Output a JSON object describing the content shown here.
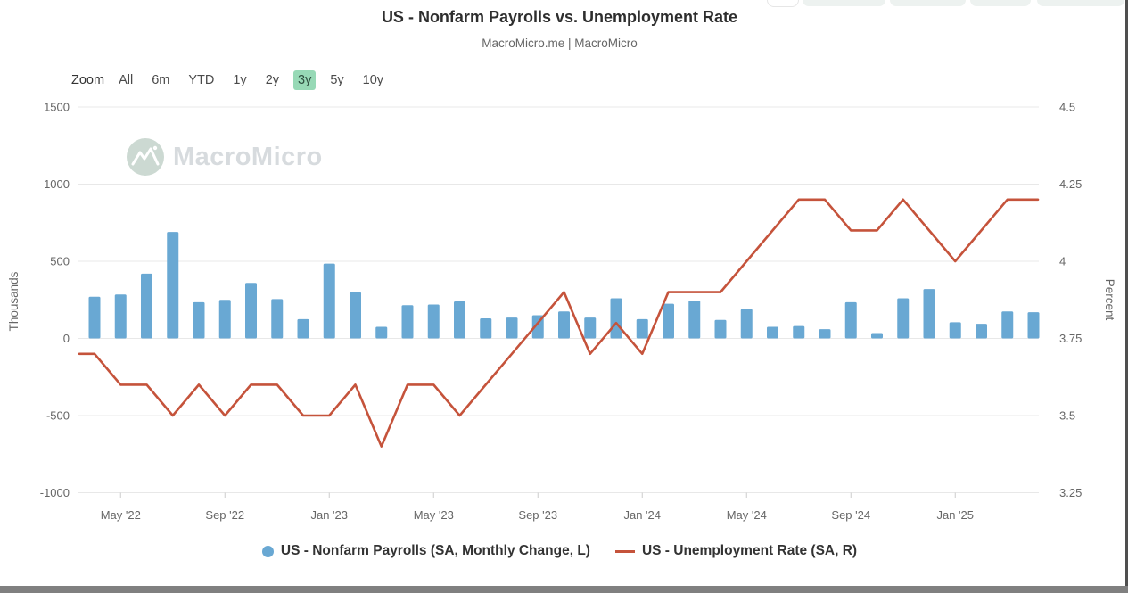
{
  "header": {
    "title": "US - Nonfarm Payrolls vs. Unemployment Rate",
    "subtitle": "MacroMicro.me | MacroMicro"
  },
  "toolbar": {
    "zoom_label": "Zoom",
    "ranges": [
      "All",
      "6m",
      "YTD",
      "1y",
      "2y",
      "3y",
      "5y",
      "10y"
    ],
    "selected": "3y"
  },
  "watermark": {
    "text": "MacroMicro",
    "logo": "macromicro-mountain-logo"
  },
  "axes": {
    "left": {
      "title": "Thousands",
      "ticks": [
        1500,
        1000,
        500,
        0,
        -500,
        -1000
      ]
    },
    "right": {
      "title": "Percent",
      "ticks": [
        4.5,
        4.25,
        4,
        3.75,
        3.5,
        3.25
      ]
    },
    "x": {
      "labels": [
        "May '22",
        "Sep '22",
        "Jan '23",
        "May '23",
        "Sep '23",
        "Jan '24",
        "May '24",
        "Sep '24",
        "Jan '25"
      ]
    }
  },
  "legend": [
    {
      "label": "US - Nonfarm Payrolls (SA, Monthly Change, L)",
      "marker": "circle",
      "color": "#69a8d3"
    },
    {
      "label": "US - Unemployment Rate (SA, R)",
      "marker": "line",
      "color": "#c5533b"
    }
  ],
  "chart_data": {
    "type": "combo",
    "title": "US - Nonfarm Payrolls vs. Unemployment Rate",
    "x": [
      "2022-04",
      "2022-05",
      "2022-06",
      "2022-07",
      "2022-08",
      "2022-09",
      "2022-10",
      "2022-11",
      "2022-12",
      "2023-01",
      "2023-02",
      "2023-03",
      "2023-04",
      "2023-05",
      "2023-06",
      "2023-07",
      "2023-08",
      "2023-09",
      "2023-10",
      "2023-11",
      "2023-12",
      "2024-01",
      "2024-02",
      "2024-03",
      "2024-04",
      "2024-05",
      "2024-06",
      "2024-07",
      "2024-08",
      "2024-09",
      "2024-10",
      "2024-11",
      "2024-12",
      "2025-01",
      "2025-02",
      "2025-03",
      "2025-04"
    ],
    "x_ticks": [
      {
        "index": 1,
        "label": "May '22"
      },
      {
        "index": 5,
        "label": "Sep '22"
      },
      {
        "index": 9,
        "label": "Jan '23"
      },
      {
        "index": 13,
        "label": "May '23"
      },
      {
        "index": 17,
        "label": "Sep '23"
      },
      {
        "index": 21,
        "label": "Jan '24"
      },
      {
        "index": 25,
        "label": "May '24"
      },
      {
        "index": 29,
        "label": "Sep '24"
      },
      {
        "index": 33,
        "label": "Jan '25"
      }
    ],
    "left_axis": {
      "title": "Thousands",
      "min": -1000,
      "max": 1500,
      "ticks": [
        1500,
        1000,
        500,
        0,
        -500,
        -1000
      ]
    },
    "right_axis": {
      "title": "Percent",
      "min": 3.25,
      "max": 4.5,
      "ticks": [
        4.5,
        4.25,
        4,
        3.75,
        3.5,
        3.25
      ]
    },
    "grid": true,
    "legend_position": "bottom",
    "series": [
      {
        "name": "US - Nonfarm Payrolls (SA, Monthly Change, L)",
        "type": "bar",
        "axis": "left",
        "unit": "thousands",
        "color": "#69a8d3",
        "values": [
          270,
          285,
          420,
          690,
          235,
          250,
          360,
          255,
          125,
          485,
          300,
          75,
          215,
          220,
          240,
          130,
          135,
          150,
          175,
          135,
          260,
          125,
          225,
          245,
          120,
          190,
          75,
          80,
          60,
          235,
          35,
          260,
          320,
          105,
          95,
          175,
          170
        ]
      },
      {
        "name": "US - Unemployment Rate (SA, R)",
        "type": "line",
        "axis": "right",
        "unit": "percent",
        "color": "#c5533b",
        "values": [
          3.7,
          3.6,
          3.6,
          3.5,
          3.6,
          3.5,
          3.6,
          3.6,
          3.5,
          3.5,
          3.6,
          3.4,
          3.6,
          3.6,
          3.5,
          3.6,
          3.7,
          3.8,
          3.9,
          3.7,
          3.8,
          3.7,
          3.9,
          3.9,
          3.9,
          4.0,
          4.1,
          4.2,
          4.2,
          4.1,
          4.1,
          4.2,
          4.1,
          4.0,
          4.1,
          4.2,
          4.2
        ]
      }
    ]
  }
}
